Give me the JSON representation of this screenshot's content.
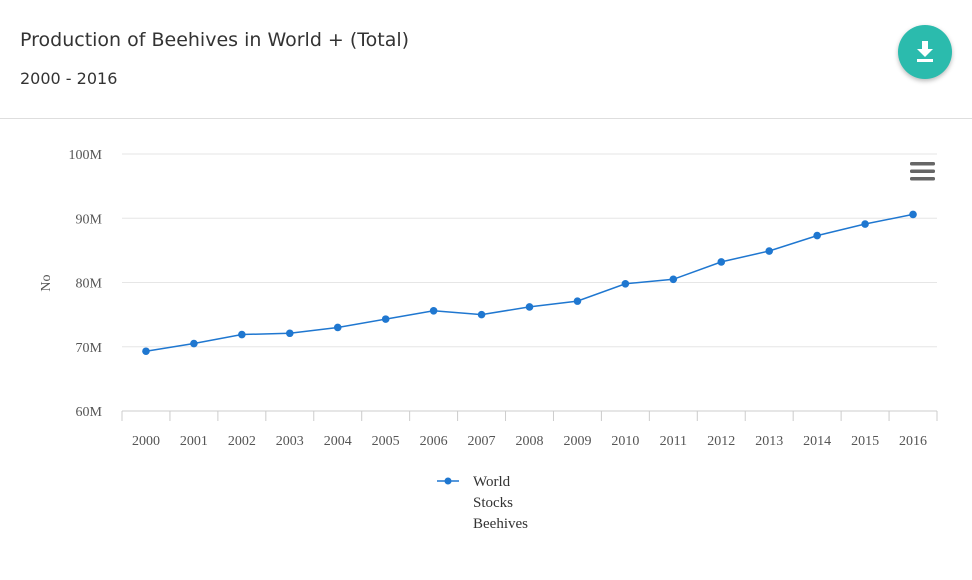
{
  "header": {
    "title": "Production of Beehives in World + (Total)",
    "subtitle": "2000 - 2016",
    "download_icon": "download-icon"
  },
  "colors": {
    "accent": "#2bbbad",
    "series": "#1f77d0",
    "grid": "#e6e6e6",
    "text": "#333333",
    "axis_text": "#555555"
  },
  "menu_icon": "hamburger-menu-icon",
  "chart_data": {
    "type": "line",
    "x": [
      "2000",
      "2001",
      "2002",
      "2003",
      "2004",
      "2005",
      "2006",
      "2007",
      "2008",
      "2009",
      "2010",
      "2011",
      "2012",
      "2013",
      "2014",
      "2015",
      "2016"
    ],
    "series": [
      {
        "name": "World Stocks Beehives",
        "values": [
          69.3,
          70.5,
          71.9,
          72.1,
          73.0,
          74.3,
          75.6,
          75.0,
          76.2,
          77.1,
          79.8,
          80.5,
          83.2,
          84.9,
          87.3,
          89.1,
          90.6
        ]
      }
    ],
    "unit": "M",
    "ylabel": "No",
    "ylim": [
      60,
      100
    ],
    "yticks": [
      60,
      70,
      80,
      90,
      100
    ],
    "ytick_labels": [
      "60M",
      "70M",
      "80M",
      "90M",
      "100M"
    ],
    "grid": true,
    "legend_position": "bottom-center",
    "legend_lines": [
      "World",
      "Stocks",
      "Beehives"
    ]
  }
}
